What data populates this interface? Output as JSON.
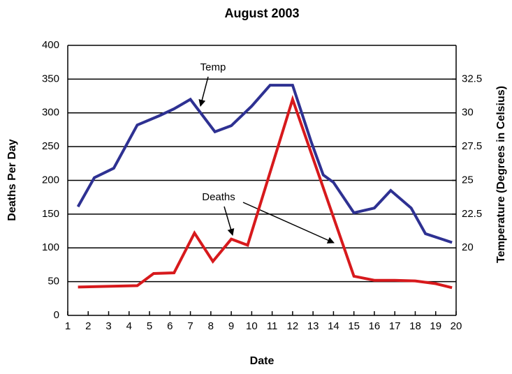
{
  "chart_data": {
    "type": "line",
    "title": "August 2003",
    "xlabel": "Date",
    "ylabel": "Deaths Per Day",
    "y2label": "Temperature (Degrees in Celsius)",
    "xlim": [
      1,
      20
    ],
    "xticks": [
      1,
      2,
      3,
      4,
      5,
      6,
      7,
      8,
      9,
      10,
      11,
      12,
      13,
      14,
      15,
      16,
      17,
      18,
      19,
      20
    ],
    "ylim": [
      0,
      400
    ],
    "yticks": [
      0,
      50,
      100,
      150,
      200,
      250,
      300,
      350,
      400
    ],
    "y2lim": [
      15,
      35
    ],
    "y2ticks": [
      20,
      22.5,
      25,
      27.5,
      30,
      32.5
    ],
    "grid": true,
    "annotations": [
      "Temp",
      "Deaths"
    ],
    "series": [
      {
        "name": "Temp",
        "color": "#2e3192",
        "axis": "y2",
        "x": [
          1.5,
          2.3,
          3.25,
          4.4,
          5.5,
          6.2,
          7.0,
          8.2,
          9.0,
          10.0,
          10.9,
          12.0,
          12.9,
          13.5,
          14.0,
          15.0,
          16.0,
          16.8,
          17.8,
          18.5,
          19.8
        ],
        "values": [
          23.05,
          25.2,
          25.9,
          29.1,
          29.8,
          30.3,
          31.0,
          28.6,
          29.05,
          30.5,
          32.05,
          32.05,
          27.9,
          25.4,
          24.85,
          22.6,
          22.95,
          24.25,
          22.95,
          21.05,
          20.4
        ]
      },
      {
        "name": "Deaths",
        "color": "#d7191c",
        "x": [
          1.5,
          4.4,
          5.2,
          6.2,
          7.2,
          8.1,
          9.0,
          9.8,
          12.0,
          15.0,
          16.0,
          17.0,
          18.0,
          19.0,
          19.8
        ],
        "values": [
          42,
          44,
          62,
          63,
          122,
          80,
          113,
          104,
          320,
          58,
          52,
          52,
          51,
          47,
          41
        ]
      }
    ]
  }
}
